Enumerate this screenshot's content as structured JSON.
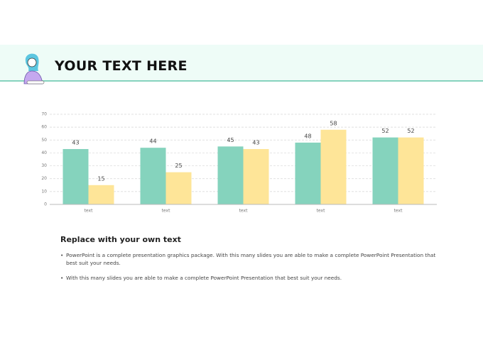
{
  "header": {
    "title": "YOUR TEXT HERE"
  },
  "chart_data": {
    "type": "bar",
    "categories": [
      "text",
      "text",
      "text",
      "text",
      "text"
    ],
    "series": [
      {
        "color": "#85d3bd",
        "values": [
          43,
          44,
          45,
          48,
          52
        ]
      },
      {
        "color": "#fee598",
        "values": [
          15,
          25,
          43,
          58,
          52
        ]
      }
    ],
    "ylim": [
      0,
      70
    ],
    "yticks": [
      0,
      10,
      20,
      30,
      40,
      50,
      60,
      70
    ],
    "grid": true
  },
  "body": {
    "heading": "Replace with your own text",
    "bullets": [
      "PowerPoint is a complete presentation graphics package. With this many slides you are able to make a complete PowerPoint Presentation that best suit your needs.",
      "With this many slides you are able to make a complete PowerPoint Presentation that best suit your needs."
    ]
  }
}
